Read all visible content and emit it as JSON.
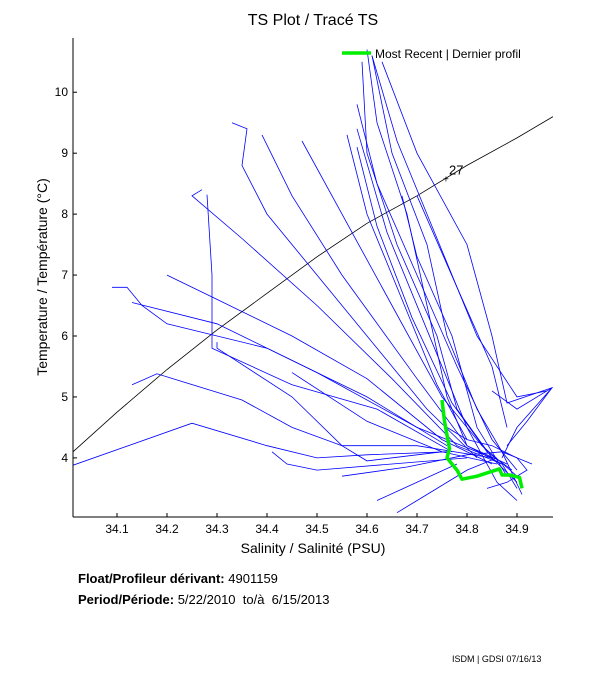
{
  "chart_data": {
    "type": "line",
    "title": "TS Plot / Tracé TS",
    "xlabel": "Salinity / Salinité (PSU)",
    "ylabel": "Temperature / Température (°C)",
    "xlim": [
      34.012,
      34.972
    ],
    "ylim": [
      3.03,
      10.89
    ],
    "xticks": [
      34.1,
      34.2,
      34.3,
      34.4,
      34.5,
      34.6,
      34.7,
      34.8,
      34.9
    ],
    "yticks": [
      4,
      5,
      6,
      7,
      8,
      9,
      10
    ],
    "grid": false,
    "legend": {
      "position": "top-right",
      "label": "Most Recent | Dernier profil"
    },
    "colors": {
      "profiles": "#0000ff",
      "recent": "#00ee00",
      "contour": "#000000"
    },
    "density_contour": {
      "label": "27",
      "label_at": [
        34.76,
        8.62
      ],
      "points": [
        [
          34.012,
          4.1
        ],
        [
          34.1,
          4.75
        ],
        [
          34.2,
          5.45
        ],
        [
          34.3,
          6.1
        ],
        [
          34.4,
          6.7
        ],
        [
          34.5,
          7.3
        ],
        [
          34.6,
          7.85
        ],
        [
          34.7,
          8.3
        ],
        [
          34.8,
          8.8
        ],
        [
          34.9,
          9.25
        ],
        [
          34.972,
          9.6
        ]
      ]
    },
    "recent_profile": [
      [
        34.75,
        4.95
      ],
      [
        34.755,
        4.6
      ],
      [
        34.765,
        4.15
      ],
      [
        34.76,
        4.0
      ],
      [
        34.78,
        3.8
      ],
      [
        34.79,
        3.65
      ],
      [
        34.82,
        3.7
      ],
      [
        34.85,
        3.78
      ],
      [
        34.865,
        3.82
      ],
      [
        34.87,
        3.72
      ],
      [
        34.885,
        3.72
      ],
      [
        34.905,
        3.68
      ],
      [
        34.91,
        3.5
      ]
    ],
    "profiles": [
      [
        [
          34.6,
          10.7
        ],
        [
          34.62,
          9.5
        ],
        [
          34.68,
          8
        ],
        [
          34.72,
          6.5
        ],
        [
          34.76,
          5
        ],
        [
          34.8,
          4.2
        ],
        [
          34.87,
          3.9
        ],
        [
          34.9,
          3.5
        ]
      ],
      [
        [
          34.59,
          10.5
        ],
        [
          34.6,
          9.0
        ],
        [
          34.66,
          7.5
        ],
        [
          34.74,
          6
        ],
        [
          34.78,
          4.8
        ],
        [
          34.85,
          4.0
        ],
        [
          34.9,
          3.6
        ]
      ],
      [
        [
          34.61,
          10.6
        ],
        [
          34.65,
          9
        ],
        [
          34.72,
          7.5
        ],
        [
          34.76,
          6.0
        ],
        [
          34.82,
          4.8
        ],
        [
          34.87,
          4.1
        ],
        [
          34.91,
          3.4
        ]
      ],
      [
        [
          34.63,
          10.5
        ],
        [
          34.7,
          9
        ],
        [
          34.8,
          7.5
        ],
        [
          34.85,
          6
        ],
        [
          34.88,
          4.9
        ],
        [
          34.97,
          5.15
        ],
        [
          34.9,
          4.5
        ],
        [
          34.87,
          4
        ]
      ],
      [
        [
          34.58,
          9.8
        ],
        [
          34.62,
          8.5
        ],
        [
          34.7,
          7
        ],
        [
          34.78,
          5.5
        ],
        [
          34.85,
          4.3
        ],
        [
          34.9,
          3.8
        ]
      ],
      [
        [
          34.47,
          9.2
        ],
        [
          34.55,
          8.0
        ],
        [
          34.65,
          6.5
        ],
        [
          34.75,
          5
        ],
        [
          34.83,
          4.2
        ],
        [
          34.9,
          3.7
        ]
      ],
      [
        [
          34.58,
          9.1
        ],
        [
          34.62,
          7.8
        ],
        [
          34.69,
          6.3
        ],
        [
          34.77,
          4.9
        ],
        [
          34.84,
          4.1
        ],
        [
          34.89,
          3.8
        ]
      ],
      [
        [
          34.39,
          9.3
        ],
        [
          34.45,
          8.3
        ],
        [
          34.55,
          7.0
        ],
        [
          34.7,
          5.3
        ],
        [
          34.8,
          4.2
        ],
        [
          34.88,
          3.9
        ]
      ],
      [
        [
          34.33,
          9.5
        ],
        [
          34.36,
          9.4
        ],
        [
          34.35,
          8.8
        ],
        [
          34.4,
          8.0
        ],
        [
          34.55,
          6.5
        ],
        [
          34.72,
          4.8
        ],
        [
          34.82,
          4.0
        ]
      ],
      [
        [
          34.27,
          8.4
        ],
        [
          34.25,
          8.3
        ],
        [
          34.35,
          7.6
        ],
        [
          34.5,
          6.5
        ],
        [
          34.65,
          5.3
        ],
        [
          34.78,
          4.2
        ],
        [
          34.87,
          3.9
        ]
      ],
      [
        [
          34.2,
          7.0
        ],
        [
          34.3,
          6.6
        ],
        [
          34.45,
          6.0
        ],
        [
          34.6,
          5.3
        ],
        [
          34.75,
          4.3
        ],
        [
          34.85,
          3.9
        ]
      ],
      [
        [
          34.09,
          6.8
        ],
        [
          34.12,
          6.8
        ],
        [
          34.15,
          6.5
        ],
        [
          34.2,
          6.2
        ],
        [
          34.4,
          5.8
        ],
        [
          34.6,
          5.0
        ],
        [
          34.76,
          4.2
        ]
      ],
      [
        [
          34.13,
          6.55
        ],
        [
          34.3,
          6.2
        ],
        [
          34.5,
          5.4
        ],
        [
          34.7,
          4.5
        ],
        [
          34.85,
          4.0
        ]
      ],
      [
        [
          34.012,
          3.88
        ],
        [
          34.25,
          4.57
        ],
        [
          34.4,
          4.2
        ],
        [
          34.5,
          4.0
        ],
        [
          34.6,
          4.05
        ],
        [
          34.76,
          4.1
        ]
      ],
      [
        [
          34.13,
          5.2
        ],
        [
          34.18,
          5.38
        ],
        [
          34.35,
          4.95
        ],
        [
          34.45,
          4.5
        ],
        [
          34.55,
          4.2
        ],
        [
          34.7,
          4.2
        ],
        [
          34.85,
          4.0
        ]
      ],
      [
        [
          34.3,
          5.9
        ],
        [
          34.3,
          5.8
        ],
        [
          34.45,
          5.0
        ],
        [
          34.55,
          4.2
        ],
        [
          34.6,
          3.95
        ],
        [
          34.75,
          4.1
        ]
      ],
      [
        [
          34.28,
          8.32
        ],
        [
          34.29,
          7.0
        ],
        [
          34.29,
          5.8
        ],
        [
          34.45,
          5.2
        ],
        [
          34.62,
          4.8
        ],
        [
          34.77,
          4.1
        ]
      ],
      [
        [
          34.41,
          4.1
        ],
        [
          34.44,
          3.9
        ],
        [
          34.5,
          3.8
        ],
        [
          34.65,
          3.9
        ],
        [
          34.8,
          4.0
        ]
      ],
      [
        [
          34.85,
          5.1
        ],
        [
          34.9,
          4.8
        ],
        [
          34.97,
          5.15
        ],
        [
          34.92,
          4.6
        ],
        [
          34.88,
          4.2
        ]
      ],
      [
        [
          34.66,
          3.1
        ],
        [
          34.72,
          3.4
        ],
        [
          34.8,
          3.8
        ],
        [
          34.86,
          4.0
        ]
      ],
      [
        [
          34.62,
          3.3
        ],
        [
          34.7,
          3.6
        ],
        [
          34.78,
          3.9
        ]
      ],
      [
        [
          34.7,
          8.3
        ],
        [
          34.78,
          6.8
        ],
        [
          34.85,
          5.5
        ],
        [
          34.88,
          4.5
        ]
      ],
      [
        [
          34.56,
          9.3
        ],
        [
          34.6,
          8
        ],
        [
          34.68,
          6.4
        ],
        [
          34.74,
          5.2
        ],
        [
          34.8,
          4.3
        ]
      ],
      [
        [
          34.61,
          10.6
        ],
        [
          34.66,
          9.2
        ],
        [
          34.74,
          7.6
        ],
        [
          34.82,
          6
        ],
        [
          34.9,
          5
        ],
        [
          34.96,
          5.1
        ]
      ],
      [
        [
          34.67,
          8.3
        ],
        [
          34.7,
          7.3
        ],
        [
          34.77,
          6.0
        ],
        [
          34.82,
          4.5
        ],
        [
          34.88,
          3.7
        ]
      ],
      [
        [
          34.58,
          9.4
        ],
        [
          34.64,
          7.7
        ],
        [
          34.74,
          5.7
        ],
        [
          34.8,
          4.5
        ],
        [
          34.86,
          3.6
        ],
        [
          34.9,
          3.3
        ]
      ],
      [
        [
          34.55,
          3.7
        ],
        [
          34.68,
          3.85
        ],
        [
          34.8,
          4.05
        ],
        [
          34.87,
          4.1
        ],
        [
          34.93,
          3.9
        ]
      ],
      [
        [
          34.76,
          4.5
        ],
        [
          34.8,
          4.3
        ],
        [
          34.85,
          4.2
        ],
        [
          34.9,
          4.0
        ],
        [
          34.92,
          3.8
        ],
        [
          34.88,
          3.6
        ],
        [
          34.84,
          3.5
        ]
      ],
      [
        [
          34.45,
          5.4
        ],
        [
          34.6,
          4.6
        ],
        [
          34.75,
          4.1
        ],
        [
          34.86,
          3.9
        ]
      ]
    ]
  },
  "info": {
    "float_label": "Float/Profileur dérivant:",
    "float_id": "4901159",
    "period_label": "Period/Période:",
    "period_value": "5/22/2010  to/à  6/15/2013"
  },
  "credit": "ISDM | GDSI  07/16/13"
}
